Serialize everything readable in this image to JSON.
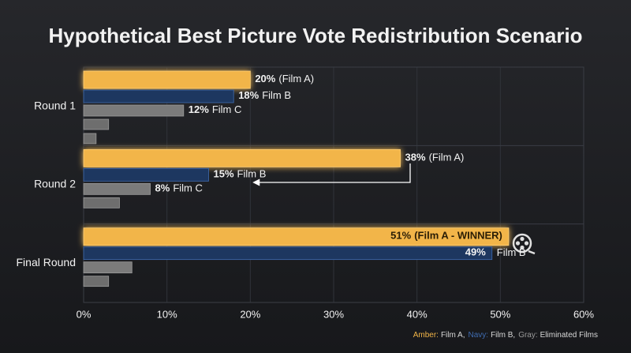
{
  "chart_data": {
    "type": "bar",
    "orientation": "horizontal",
    "title": "Hypothetical Best Picture Vote Redistribution Scenario",
    "categories": [
      "Round 1",
      "Round 2",
      "Final Round"
    ],
    "series": [
      {
        "name": "Film A",
        "color": "#f2b548",
        "values": [
          20,
          38,
          51
        ],
        "value_labels": [
          "20%",
          "38%",
          "51%"
        ],
        "annotations": [
          "(Film A)",
          "(Film A)",
          "(Film A - WINNER)"
        ]
      },
      {
        "name": "Film B",
        "color": "#1d3760",
        "values": [
          18,
          15,
          49
        ],
        "value_labels": [
          "18%",
          "15%",
          "49%"
        ],
        "annotations": [
          "Film B",
          "Film B",
          "Film B"
        ]
      },
      {
        "name": "Film C",
        "color": "#7b7b7b",
        "values": [
          12,
          8,
          5.8
        ],
        "value_labels": [
          "12%",
          "8%",
          null
        ],
        "annotations": [
          "Film C",
          "Film C",
          null
        ]
      },
      {
        "color": "#6e6e6e",
        "values": [
          3,
          4.3,
          3
        ]
      },
      {
        "color": "#6e6e6e",
        "values": [
          1.5,
          null,
          null
        ]
      }
    ],
    "xlim": [
      0,
      60
    ],
    "xticks": [
      {
        "value": 0,
        "label": "0%"
      },
      {
        "value": 10,
        "label": "10%"
      },
      {
        "value": 20,
        "label": "20%"
      },
      {
        "value": 30,
        "label": "30%"
      },
      {
        "value": 40,
        "label": "40%"
      },
      {
        "value": 50,
        "label": "50%"
      },
      {
        "value": 60,
        "label": "60%"
      }
    ],
    "grid": true,
    "legend": [
      {
        "color": "#f2b548",
        "key": "Amber:",
        "label": "Film A,"
      },
      {
        "color": "#3f6bb0",
        "key": "Navy:",
        "label": "Film B,"
      },
      {
        "color": "#9a9a9a",
        "key": "Gray:",
        "label": "Eliminated Films"
      }
    ]
  }
}
